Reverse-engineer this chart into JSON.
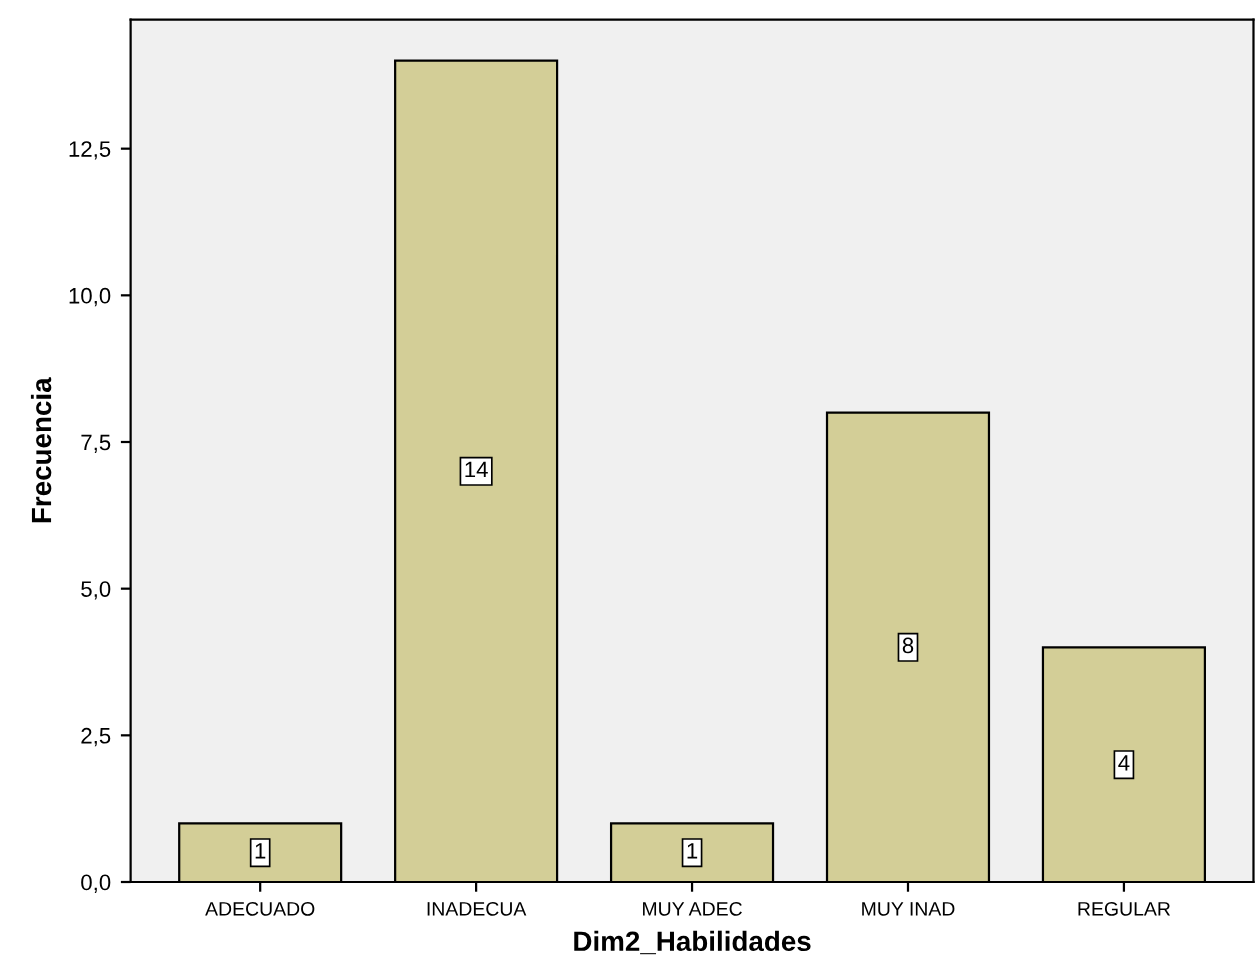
{
  "chart_data": {
    "type": "bar",
    "xlabel": "Dim2_Habilidades",
    "ylabel": "Frecuencia",
    "categories": [
      "ADECUADO",
      "INADECUA",
      "MUY ADEC",
      "MUY INAD",
      "REGULAR"
    ],
    "values": [
      1,
      14,
      1,
      8,
      4
    ],
    "color": "#d3ce97",
    "ylim": [
      0,
      14.7
    ],
    "yticks": [
      {
        "value": 0,
        "label": "0,0"
      },
      {
        "value": 2.5,
        "label": "2,5"
      },
      {
        "value": 5,
        "label": "5,0"
      },
      {
        "value": 7.5,
        "label": "7,5"
      },
      {
        "value": 10,
        "label": "10,0"
      },
      {
        "value": 12.5,
        "label": "12,5"
      }
    ],
    "data_labels": true,
    "grid": false,
    "legend": false
  }
}
